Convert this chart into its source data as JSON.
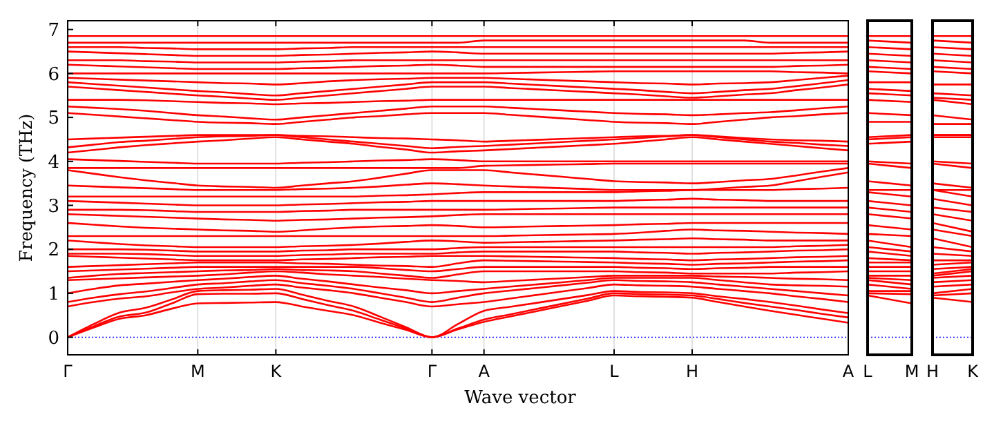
{
  "chart_data": [
    {
      "type": "line",
      "xlabel": "Wave vector",
      "ylabel": "Frequency (THz)",
      "grid": "x",
      "categories": [
        "Γ",
        null,
        null,
        null,
        null,
        "M",
        null,
        null,
        "K",
        null,
        null,
        null,
        null,
        null,
        "Γ",
        null,
        "A",
        null,
        null,
        null,
        null,
        "L",
        null,
        null,
        "H",
        null,
        null,
        null,
        null,
        null,
        "A"
      ],
      "ylim": [
        -0.4,
        7.2
      ],
      "yticks": [
        0,
        1,
        2,
        3,
        4,
        5,
        6,
        7
      ],
      "ref_lines": [
        {
          "axis": "y",
          "value": 0,
          "color": "#0000ff",
          "line_style": "dotted"
        }
      ],
      "series": [
        {
          "color": "#ff0000",
          "values": [
            0,
            0.22,
            0.42,
            0.5,
            0.65,
            0.77,
            0.78,
            0.79,
            0.8,
            0.7,
            0.6,
            0.5,
            0.33,
            0.17,
            0,
            0.18,
            0.35,
            0.47,
            0.59,
            0.71,
            0.83,
            0.95,
            0.93,
            0.92,
            0.9,
            0.8,
            0.7,
            0.6,
            0.51,
            0.42,
            0.33
          ]
        },
        {
          "color": "#ff0000",
          "values": [
            0,
            0.25,
            0.47,
            0.56,
            0.77,
            0.98,
            0.99,
            0.99,
            1.0,
            0.87,
            0.73,
            0.6,
            0.4,
            0.2,
            0,
            0.2,
            0.4,
            0.52,
            0.64,
            0.76,
            0.88,
            1.0,
            0.98,
            0.97,
            0.95,
            0.87,
            0.78,
            0.7,
            0.62,
            0.53,
            0.45
          ]
        },
        {
          "color": "#ff0000",
          "values": [
            0,
            0.3,
            0.56,
            0.67,
            0.86,
            1.05,
            1.07,
            1.08,
            1.1,
            0.97,
            0.83,
            0.7,
            0.47,
            0.23,
            0,
            0.3,
            0.6,
            0.69,
            0.78,
            0.87,
            0.96,
            1.05,
            1.03,
            1.02,
            1.0,
            0.93,
            0.87,
            0.8,
            0.72,
            0.63,
            0.55
          ]
        },
        {
          "color": "#ff0000",
          "values": [
            0.7,
            0.8,
            0.88,
            0.93,
            1.02,
            1.1,
            1.13,
            1.17,
            1.2,
            1.13,
            1.07,
            1.0,
            0.9,
            0.8,
            0.7,
            0.75,
            0.8,
            0.88,
            0.96,
            1.04,
            1.12,
            1.2,
            1.18,
            1.17,
            1.15,
            1.1,
            1.05,
            1.0,
            0.93,
            0.87,
            0.8
          ]
        },
        {
          "color": "#ff0000",
          "values": [
            0.8,
            0.9,
            0.98,
            1.04,
            1.12,
            1.2,
            1.23,
            1.27,
            1.3,
            1.23,
            1.17,
            1.1,
            1.0,
            0.9,
            0.8,
            0.9,
            1.0,
            1.06,
            1.12,
            1.18,
            1.24,
            1.3,
            1.28,
            1.27,
            1.25,
            1.2,
            1.15,
            1.1,
            1.05,
            1.0,
            0.95
          ]
        },
        {
          "color": "#ff0000",
          "values": [
            1.0,
            1.1,
            1.18,
            1.22,
            1.26,
            1.3,
            1.33,
            1.37,
            1.4,
            1.33,
            1.27,
            1.2,
            1.13,
            1.07,
            1.0,
            1.05,
            1.1,
            1.15,
            1.2,
            1.25,
            1.3,
            1.35,
            1.35,
            1.35,
            1.35,
            1.3,
            1.25,
            1.2,
            1.18,
            1.17,
            1.15
          ]
        },
        {
          "color": "#ff0000",
          "values": [
            1.3,
            1.32,
            1.34,
            1.36,
            1.38,
            1.4,
            1.43,
            1.47,
            1.5,
            1.47,
            1.43,
            1.4,
            1.37,
            1.33,
            1.3,
            1.28,
            1.25,
            1.28,
            1.31,
            1.34,
            1.37,
            1.4,
            1.4,
            1.4,
            1.4,
            1.38,
            1.37,
            1.35,
            1.33,
            1.32,
            1.3
          ]
        },
        {
          "color": "#ff0000",
          "values": [
            1.35,
            1.4,
            1.44,
            1.46,
            1.48,
            1.5,
            1.52,
            1.53,
            1.55,
            1.53,
            1.52,
            1.5,
            1.45,
            1.4,
            1.35,
            1.43,
            1.5,
            1.5,
            1.5,
            1.5,
            1.5,
            1.5,
            1.48,
            1.47,
            1.45,
            1.45,
            1.45,
            1.45,
            1.47,
            1.48,
            1.5
          ]
        },
        {
          "color": "#ff0000",
          "values": [
            1.5,
            1.52,
            1.54,
            1.56,
            1.58,
            1.6,
            1.6,
            1.6,
            1.6,
            1.6,
            1.6,
            1.6,
            1.57,
            1.53,
            1.5,
            1.55,
            1.6,
            1.6,
            1.6,
            1.6,
            1.6,
            1.6,
            1.58,
            1.57,
            1.55,
            1.57,
            1.58,
            1.6,
            1.6,
            1.6,
            1.6
          ]
        },
        {
          "color": "#ff0000",
          "values": [
            1.6,
            1.62,
            1.64,
            1.66,
            1.68,
            1.7,
            1.7,
            1.7,
            1.7,
            1.68,
            1.67,
            1.65,
            1.63,
            1.62,
            1.6,
            1.68,
            1.75,
            1.74,
            1.73,
            1.72,
            1.71,
            1.7,
            1.68,
            1.67,
            1.65,
            1.67,
            1.68,
            1.7,
            1.72,
            1.73,
            1.75
          ]
        },
        {
          "color": "#ff0000",
          "values": [
            1.85,
            1.83,
            1.81,
            1.79,
            1.77,
            1.75,
            1.75,
            1.75,
            1.75,
            1.77,
            1.78,
            1.8,
            1.82,
            1.83,
            1.85,
            1.85,
            1.85,
            1.84,
            1.83,
            1.82,
            1.81,
            1.8,
            1.78,
            1.77,
            1.75,
            1.77,
            1.78,
            1.8,
            1.82,
            1.83,
            1.85
          ]
        },
        {
          "color": "#ff0000",
          "values": [
            1.9,
            1.9,
            1.9,
            1.89,
            1.87,
            1.85,
            1.85,
            1.85,
            1.85,
            1.87,
            1.88,
            1.9,
            1.9,
            1.9,
            1.9,
            1.93,
            1.95,
            1.95,
            1.95,
            1.95,
            1.95,
            1.95,
            1.93,
            1.92,
            1.9,
            1.92,
            1.93,
            1.95,
            1.97,
            1.98,
            2.0
          ]
        },
        {
          "color": "#ff0000",
          "values": [
            2.0,
            2.0,
            2.0,
            1.99,
            1.97,
            1.95,
            1.95,
            1.95,
            1.95,
            1.97,
            1.98,
            2.0,
            2.0,
            2.0,
            2.0,
            2.03,
            2.05,
            2.05,
            2.05,
            2.05,
            2.05,
            2.05,
            2.05,
            2.05,
            2.05,
            2.05,
            2.05,
            2.05,
            2.07,
            2.08,
            2.1
          ]
        },
        {
          "color": "#ff0000",
          "values": [
            2.2,
            2.16,
            2.12,
            2.09,
            2.07,
            2.05,
            2.05,
            2.05,
            2.05,
            2.07,
            2.08,
            2.1,
            2.13,
            2.17,
            2.2,
            2.18,
            2.15,
            2.16,
            2.17,
            2.18,
            2.19,
            2.2,
            2.22,
            2.23,
            2.25,
            2.23,
            2.22,
            2.2,
            2.2,
            2.2,
            2.2
          ]
        },
        {
          "color": "#ff0000",
          "values": [
            2.3,
            2.3,
            2.3,
            2.3,
            2.3,
            2.3,
            2.3,
            2.3,
            2.3,
            2.3,
            2.3,
            2.3,
            2.3,
            2.3,
            2.3,
            2.3,
            2.3,
            2.31,
            2.32,
            2.33,
            2.34,
            2.35,
            2.38,
            2.42,
            2.45,
            2.43,
            2.42,
            2.4,
            2.38,
            2.37,
            2.35
          ]
        },
        {
          "color": "#ff0000",
          "values": [
            2.6,
            2.56,
            2.52,
            2.49,
            2.47,
            2.45,
            2.43,
            2.42,
            2.4,
            2.43,
            2.47,
            2.5,
            2.52,
            2.53,
            2.55,
            2.53,
            2.5,
            2.51,
            2.52,
            2.53,
            2.54,
            2.55,
            2.57,
            2.58,
            2.6,
            2.6,
            2.6,
            2.6,
            2.6,
            2.6,
            2.6
          ]
        },
        {
          "color": "#ff0000",
          "values": [
            2.8,
            2.78,
            2.76,
            2.74,
            2.72,
            2.7,
            2.68,
            2.67,
            2.65,
            2.67,
            2.68,
            2.7,
            2.72,
            2.73,
            2.75,
            2.78,
            2.8,
            2.8,
            2.8,
            2.8,
            2.8,
            2.8,
            2.8,
            2.8,
            2.8,
            2.8,
            2.8,
            2.8,
            2.8,
            2.8,
            2.8
          ]
        },
        {
          "color": "#ff0000",
          "values": [
            2.9,
            2.9,
            2.9,
            2.89,
            2.87,
            2.85,
            2.85,
            2.85,
            2.85,
            2.87,
            2.88,
            2.9,
            2.9,
            2.9,
            2.9,
            2.9,
            2.9,
            2.91,
            2.92,
            2.93,
            2.94,
            2.95,
            2.95,
            2.95,
            2.95,
            2.95,
            2.95,
            2.95,
            2.95,
            2.95,
            2.95
          ]
        },
        {
          "color": "#ff0000",
          "values": [
            3.1,
            3.08,
            3.06,
            3.04,
            3.02,
            3.0,
            3.0,
            3.0,
            3.0,
            3.02,
            3.03,
            3.05,
            3.07,
            3.08,
            3.1,
            3.1,
            3.1,
            3.1,
            3.1,
            3.1,
            3.1,
            3.1,
            3.12,
            3.13,
            3.15,
            3.13,
            3.12,
            3.1,
            3.1,
            3.1,
            3.1
          ]
        },
        {
          "color": "#ff0000",
          "values": [
            3.2,
            3.2,
            3.2,
            3.2,
            3.2,
            3.2,
            3.2,
            3.2,
            3.2,
            3.2,
            3.2,
            3.2,
            3.22,
            3.23,
            3.25,
            3.28,
            3.3,
            3.3,
            3.3,
            3.3,
            3.3,
            3.3,
            3.32,
            3.33,
            3.35,
            3.35,
            3.35,
            3.35,
            3.37,
            3.38,
            3.4
          ]
        },
        {
          "color": "#ff0000",
          "values": [
            3.45,
            3.43,
            3.41,
            3.39,
            3.37,
            3.35,
            3.35,
            3.35,
            3.35,
            3.37,
            3.38,
            3.4,
            3.43,
            3.47,
            3.5,
            3.48,
            3.45,
            3.43,
            3.41,
            3.39,
            3.37,
            3.35,
            3.35,
            3.35,
            3.35,
            3.38,
            3.42,
            3.45,
            3.55,
            3.65,
            3.75
          ]
        },
        {
          "color": "#ff0000",
          "values": [
            3.8,
            3.72,
            3.64,
            3.57,
            3.51,
            3.45,
            3.43,
            3.42,
            3.4,
            3.45,
            3.5,
            3.55,
            3.63,
            3.72,
            3.8,
            3.8,
            3.8,
            3.75,
            3.7,
            3.65,
            3.6,
            3.55,
            3.53,
            3.52,
            3.5,
            3.53,
            3.57,
            3.6,
            3.68,
            3.77,
            3.85
          ]
        },
        {
          "color": "#ff0000",
          "values": [
            3.85,
            3.85,
            3.85,
            3.85,
            3.85,
            3.85,
            3.85,
            3.85,
            3.85,
            3.85,
            3.85,
            3.85,
            3.85,
            3.85,
            3.85,
            3.85,
            3.9,
            3.91,
            3.92,
            3.93,
            3.94,
            3.95,
            3.95,
            3.95,
            3.95,
            3.95,
            3.95,
            3.95,
            3.95,
            3.95,
            3.95
          ]
        },
        {
          "color": "#ff0000",
          "values": [
            4.05,
            4.03,
            4.01,
            3.99,
            3.97,
            3.95,
            3.95,
            3.95,
            3.95,
            3.97,
            3.98,
            4.0,
            4.02,
            4.03,
            4.05,
            4.03,
            4.0,
            4.0,
            4.0,
            4.0,
            4.0,
            4.0,
            4.0,
            4.0,
            4.0,
            4.0,
            4.0,
            4.0,
            4.0,
            4.0,
            4.0
          ]
        },
        {
          "color": "#ff0000",
          "values": [
            4.2,
            4.26,
            4.32,
            4.37,
            4.41,
            4.45,
            4.48,
            4.52,
            4.55,
            4.5,
            4.45,
            4.4,
            4.33,
            4.27,
            4.2,
            4.23,
            4.25,
            4.28,
            4.31,
            4.34,
            4.37,
            4.4,
            4.45,
            4.5,
            4.55,
            4.5,
            4.45,
            4.4,
            4.35,
            4.3,
            4.25
          ]
        },
        {
          "color": "#ff0000",
          "values": [
            4.32,
            4.38,
            4.44,
            4.47,
            4.51,
            4.55,
            4.57,
            4.58,
            4.6,
            4.55,
            4.5,
            4.45,
            4.4,
            4.35,
            4.3,
            4.33,
            4.35,
            4.38,
            4.41,
            4.44,
            4.47,
            4.5,
            4.53,
            4.57,
            4.6,
            4.55,
            4.5,
            4.45,
            4.42,
            4.38,
            4.35
          ]
        },
        {
          "color": "#ff0000",
          "values": [
            4.5,
            4.52,
            4.54,
            4.56,
            4.58,
            4.6,
            4.6,
            4.6,
            4.6,
            4.58,
            4.57,
            4.55,
            4.53,
            4.52,
            4.5,
            4.48,
            4.45,
            4.47,
            4.49,
            4.51,
            4.53,
            4.55,
            4.57,
            4.58,
            4.6,
            4.57,
            4.53,
            4.5,
            4.48,
            4.47,
            4.45
          ]
        },
        {
          "color": "#ff0000",
          "values": [
            5.1,
            5.06,
            5.02,
            4.98,
            4.94,
            4.9,
            4.88,
            4.87,
            4.85,
            4.9,
            4.95,
            5.0,
            5.03,
            5.07,
            5.1,
            5.1,
            5.1,
            5.06,
            5.02,
            4.98,
            4.94,
            4.9,
            4.88,
            4.87,
            4.85,
            4.9,
            4.95,
            5.0,
            5.03,
            5.07,
            5.1
          ]
        },
        {
          "color": "#ff0000",
          "values": [
            5.25,
            5.22,
            5.19,
            5.15,
            5.1,
            5.05,
            5.02,
            4.98,
            4.95,
            5.0,
            5.05,
            5.1,
            5.15,
            5.2,
            5.25,
            5.25,
            5.25,
            5.22,
            5.19,
            5.16,
            5.13,
            5.1,
            5.08,
            5.07,
            5.05,
            5.07,
            5.1,
            5.12,
            5.16,
            5.21,
            5.25
          ]
        },
        {
          "color": "#ff0000",
          "values": [
            5.4,
            5.4,
            5.4,
            5.39,
            5.37,
            5.35,
            5.33,
            5.32,
            5.3,
            5.32,
            5.33,
            5.35,
            5.37,
            5.38,
            5.4,
            5.4,
            5.4,
            5.4,
            5.4,
            5.4,
            5.4,
            5.4,
            5.4,
            5.4,
            5.4,
            5.4,
            5.4,
            5.4,
            5.4,
            5.4,
            5.4
          ]
        },
        {
          "color": "#ff0000",
          "values": [
            5.7,
            5.66,
            5.62,
            5.58,
            5.54,
            5.5,
            5.47,
            5.43,
            5.4,
            5.45,
            5.5,
            5.55,
            5.6,
            5.65,
            5.7,
            5.7,
            5.7,
            5.67,
            5.64,
            5.61,
            5.58,
            5.55,
            5.52,
            5.48,
            5.45,
            5.48,
            5.52,
            5.55,
            5.62,
            5.68,
            5.75
          ]
        },
        {
          "color": "#ff0000",
          "values": [
            5.8,
            5.76,
            5.72,
            5.68,
            5.64,
            5.6,
            5.57,
            5.53,
            5.5,
            5.55,
            5.6,
            5.65,
            5.7,
            5.75,
            5.8,
            5.8,
            5.8,
            5.77,
            5.74,
            5.71,
            5.68,
            5.65,
            5.62,
            5.58,
            5.55,
            5.58,
            5.62,
            5.65,
            5.71,
            5.78,
            5.85
          ]
        },
        {
          "color": "#ff0000",
          "values": [
            5.9,
            5.88,
            5.86,
            5.84,
            5.82,
            5.8,
            5.78,
            5.77,
            5.75,
            5.78,
            5.82,
            5.85,
            5.87,
            5.88,
            5.9,
            5.9,
            5.9,
            5.88,
            5.86,
            5.84,
            5.82,
            5.8,
            5.78,
            5.77,
            5.75,
            5.77,
            5.78,
            5.8,
            5.85,
            5.9,
            5.95
          ]
        },
        {
          "color": "#ff0000",
          "values": [
            6.0,
            6.0,
            6.0,
            6.0,
            6.0,
            6.0,
            6.0,
            6.0,
            6.0,
            6.0,
            6.0,
            6.0,
            6.0,
            6.0,
            6.0,
            6.0,
            6.0,
            6.01,
            6.02,
            6.03,
            6.04,
            6.05,
            6.05,
            6.05,
            6.05,
            6.05,
            6.05,
            6.05,
            6.03,
            6.02,
            6.0
          ]
        },
        {
          "color": "#ff0000",
          "values": [
            6.2,
            6.18,
            6.16,
            6.14,
            6.12,
            6.1,
            6.1,
            6.1,
            6.1,
            6.12,
            6.13,
            6.15,
            6.17,
            6.18,
            6.2,
            6.18,
            6.15,
            6.15,
            6.15,
            6.15,
            6.15,
            6.15,
            6.15,
            6.15,
            6.15,
            6.15,
            6.15,
            6.15,
            6.17,
            6.18,
            6.2
          ]
        },
        {
          "color": "#ff0000",
          "values": [
            6.3,
            6.3,
            6.3,
            6.28,
            6.27,
            6.25,
            6.25,
            6.25,
            6.25,
            6.27,
            6.28,
            6.3,
            6.3,
            6.3,
            6.3,
            6.3,
            6.3,
            6.3,
            6.3,
            6.3,
            6.3,
            6.3,
            6.3,
            6.3,
            6.3,
            6.3,
            6.3,
            6.3,
            6.3,
            6.3,
            6.3
          ]
        },
        {
          "color": "#ff0000",
          "values": [
            6.5,
            6.48,
            6.46,
            6.44,
            6.42,
            6.4,
            6.4,
            6.4,
            6.4,
            6.42,
            6.43,
            6.45,
            6.47,
            6.48,
            6.5,
            6.48,
            6.45,
            6.45,
            6.45,
            6.45,
            6.45,
            6.45,
            6.45,
            6.45,
            6.45,
            6.45,
            6.45,
            6.45,
            6.47,
            6.48,
            6.5
          ]
        },
        {
          "color": "#ff0000",
          "values": [
            6.6,
            6.6,
            6.6,
            6.58,
            6.57,
            6.55,
            6.55,
            6.55,
            6.55,
            6.57,
            6.58,
            6.6,
            6.6,
            6.6,
            6.6,
            6.6,
            6.6,
            6.6,
            6.6,
            6.6,
            6.6,
            6.6,
            6.6,
            6.6,
            6.6,
            6.6,
            6.6,
            6.6,
            6.6,
            6.6,
            6.6
          ]
        },
        {
          "color": "#ff0000",
          "values": [
            6.7,
            6.7,
            6.7,
            6.7,
            6.7,
            6.7,
            6.7,
            6.7,
            6.7,
            6.7,
            6.7,
            6.7,
            6.7,
            6.7,
            6.7,
            6.7,
            6.75,
            6.75,
            6.75,
            6.75,
            6.75,
            6.75,
            6.75,
            6.75,
            6.75,
            6.75,
            6.75,
            6.7,
            6.7,
            6.7,
            6.7
          ]
        },
        {
          "color": "#ff0000",
          "values": [
            6.85,
            6.85,
            6.85,
            6.85,
            6.85,
            6.85,
            6.85,
            6.85,
            6.85,
            6.85,
            6.85,
            6.85,
            6.85,
            6.85,
            6.85,
            6.85,
            6.85,
            6.85,
            6.85,
            6.85,
            6.85,
            6.85,
            6.85,
            6.85,
            6.85,
            6.85,
            6.85,
            6.85,
            6.85,
            6.85,
            6.85
          ]
        }
      ]
    },
    {
      "type": "line",
      "tick_labels": "x",
      "categories": [
        "L",
        "M"
      ],
      "ylim": [
        -0.4,
        7.2
      ],
      "yticks": [
        0,
        1,
        2,
        3,
        4,
        5,
        6,
        7
      ],
      "ref_lines": [
        {
          "axis": "y",
          "value": 0,
          "color": "#0000ff",
          "line_style": "dotted"
        }
      ],
      "series": [
        {
          "color": "#ff0000",
          "values": [
            0.95,
            0.77
          ]
        },
        {
          "color": "#ff0000",
          "values": [
            1.0,
            0.98
          ]
        },
        {
          "color": "#ff0000",
          "values": [
            1.05,
            1.05
          ]
        },
        {
          "color": "#ff0000",
          "values": [
            1.2,
            1.1
          ]
        },
        {
          "color": "#ff0000",
          "values": [
            1.3,
            1.2
          ]
        },
        {
          "color": "#ff0000",
          "values": [
            1.35,
            1.3
          ]
        },
        {
          "color": "#ff0000",
          "values": [
            1.4,
            1.4
          ]
        },
        {
          "color": "#ff0000",
          "values": [
            1.5,
            1.5
          ]
        },
        {
          "color": "#ff0000",
          "values": [
            1.6,
            1.6
          ]
        },
        {
          "color": "#ff0000",
          "values": [
            1.7,
            1.7
          ]
        },
        {
          "color": "#ff0000",
          "values": [
            1.8,
            1.75
          ]
        },
        {
          "color": "#ff0000",
          "values": [
            1.95,
            1.85
          ]
        },
        {
          "color": "#ff0000",
          "values": [
            2.05,
            1.95
          ]
        },
        {
          "color": "#ff0000",
          "values": [
            2.2,
            2.05
          ]
        },
        {
          "color": "#ff0000",
          "values": [
            2.35,
            2.3
          ]
        },
        {
          "color": "#ff0000",
          "values": [
            2.55,
            2.45
          ]
        },
        {
          "color": "#ff0000",
          "values": [
            2.8,
            2.7
          ]
        },
        {
          "color": "#ff0000",
          "values": [
            2.95,
            2.85
          ]
        },
        {
          "color": "#ff0000",
          "values": [
            3.1,
            3.0
          ]
        },
        {
          "color": "#ff0000",
          "values": [
            3.3,
            3.2
          ]
        },
        {
          "color": "#ff0000",
          "values": [
            3.35,
            3.35
          ]
        },
        {
          "color": "#ff0000",
          "values": [
            3.55,
            3.45
          ]
        },
        {
          "color": "#ff0000",
          "values": [
            3.95,
            3.85
          ]
        },
        {
          "color": "#ff0000",
          "values": [
            4.0,
            3.95
          ]
        },
        {
          "color": "#ff0000",
          "values": [
            4.4,
            4.45
          ]
        },
        {
          "color": "#ff0000",
          "values": [
            4.5,
            4.55
          ]
        },
        {
          "color": "#ff0000",
          "values": [
            4.55,
            4.6
          ]
        },
        {
          "color": "#ff0000",
          "values": [
            4.9,
            4.9
          ]
        },
        {
          "color": "#ff0000",
          "values": [
            5.1,
            5.05
          ]
        },
        {
          "color": "#ff0000",
          "values": [
            5.4,
            5.35
          ]
        },
        {
          "color": "#ff0000",
          "values": [
            5.55,
            5.5
          ]
        },
        {
          "color": "#ff0000",
          "values": [
            5.65,
            5.6
          ]
        },
        {
          "color": "#ff0000",
          "values": [
            5.8,
            5.8
          ]
        },
        {
          "color": "#ff0000",
          "values": [
            6.05,
            6.0
          ]
        },
        {
          "color": "#ff0000",
          "values": [
            6.15,
            6.1
          ]
        },
        {
          "color": "#ff0000",
          "values": [
            6.3,
            6.25
          ]
        },
        {
          "color": "#ff0000",
          "values": [
            6.45,
            6.4
          ]
        },
        {
          "color": "#ff0000",
          "values": [
            6.6,
            6.55
          ]
        },
        {
          "color": "#ff0000",
          "values": [
            6.75,
            6.7
          ]
        },
        {
          "color": "#ff0000",
          "values": [
            6.85,
            6.85
          ]
        }
      ]
    },
    {
      "type": "line",
      "tick_labels": "x",
      "categories": [
        "H",
        "K"
      ],
      "ylim": [
        -0.4,
        7.2
      ],
      "yticks": [
        0,
        1,
        2,
        3,
        4,
        5,
        6,
        7
      ],
      "ref_lines": [
        {
          "axis": "y",
          "value": 0,
          "color": "#0000ff",
          "line_style": "dotted"
        }
      ],
      "series": [
        {
          "color": "#ff0000",
          "values": [
            0.9,
            0.8
          ]
        },
        {
          "color": "#ff0000",
          "values": [
            0.95,
            1.0
          ]
        },
        {
          "color": "#ff0000",
          "values": [
            1.0,
            1.1
          ]
        },
        {
          "color": "#ff0000",
          "values": [
            1.15,
            1.2
          ]
        },
        {
          "color": "#ff0000",
          "values": [
            1.25,
            1.3
          ]
        },
        {
          "color": "#ff0000",
          "values": [
            1.35,
            1.4
          ]
        },
        {
          "color": "#ff0000",
          "values": [
            1.4,
            1.5
          ]
        },
        {
          "color": "#ff0000",
          "values": [
            1.45,
            1.55
          ]
        },
        {
          "color": "#ff0000",
          "values": [
            1.55,
            1.6
          ]
        },
        {
          "color": "#ff0000",
          "values": [
            1.65,
            1.7
          ]
        },
        {
          "color": "#ff0000",
          "values": [
            1.75,
            1.75
          ]
        },
        {
          "color": "#ff0000",
          "values": [
            1.9,
            1.85
          ]
        },
        {
          "color": "#ff0000",
          "values": [
            2.05,
            1.95
          ]
        },
        {
          "color": "#ff0000",
          "values": [
            2.25,
            2.05
          ]
        },
        {
          "color": "#ff0000",
          "values": [
            2.45,
            2.3
          ]
        },
        {
          "color": "#ff0000",
          "values": [
            2.6,
            2.4
          ]
        },
        {
          "color": "#ff0000",
          "values": [
            2.8,
            2.65
          ]
        },
        {
          "color": "#ff0000",
          "values": [
            2.95,
            2.85
          ]
        },
        {
          "color": "#ff0000",
          "values": [
            3.15,
            3.0
          ]
        },
        {
          "color": "#ff0000",
          "values": [
            3.35,
            3.2
          ]
        },
        {
          "color": "#ff0000",
          "values": [
            3.35,
            3.35
          ]
        },
        {
          "color": "#ff0000",
          "values": [
            3.5,
            3.4
          ]
        },
        {
          "color": "#ff0000",
          "values": [
            3.95,
            3.85
          ]
        },
        {
          "color": "#ff0000",
          "values": [
            4.0,
            3.95
          ]
        },
        {
          "color": "#ff0000",
          "values": [
            4.55,
            4.55
          ]
        },
        {
          "color": "#ff0000",
          "values": [
            4.6,
            4.6
          ]
        },
        {
          "color": "#ff0000",
          "values": [
            4.6,
            4.6
          ]
        },
        {
          "color": "#ff0000",
          "values": [
            4.85,
            4.85
          ]
        },
        {
          "color": "#ff0000",
          "values": [
            5.05,
            4.95
          ]
        },
        {
          "color": "#ff0000",
          "values": [
            5.4,
            5.3
          ]
        },
        {
          "color": "#ff0000",
          "values": [
            5.45,
            5.4
          ]
        },
        {
          "color": "#ff0000",
          "values": [
            5.55,
            5.5
          ]
        },
        {
          "color": "#ff0000",
          "values": [
            5.75,
            5.75
          ]
        },
        {
          "color": "#ff0000",
          "values": [
            6.05,
            6.0
          ]
        },
        {
          "color": "#ff0000",
          "values": [
            6.15,
            6.1
          ]
        },
        {
          "color": "#ff0000",
          "values": [
            6.3,
            6.25
          ]
        },
        {
          "color": "#ff0000",
          "values": [
            6.45,
            6.4
          ]
        },
        {
          "color": "#ff0000",
          "values": [
            6.6,
            6.55
          ]
        },
        {
          "color": "#ff0000",
          "values": [
            6.75,
            6.7
          ]
        },
        {
          "color": "#ff0000",
          "values": [
            6.85,
            6.85
          ]
        }
      ]
    }
  ]
}
